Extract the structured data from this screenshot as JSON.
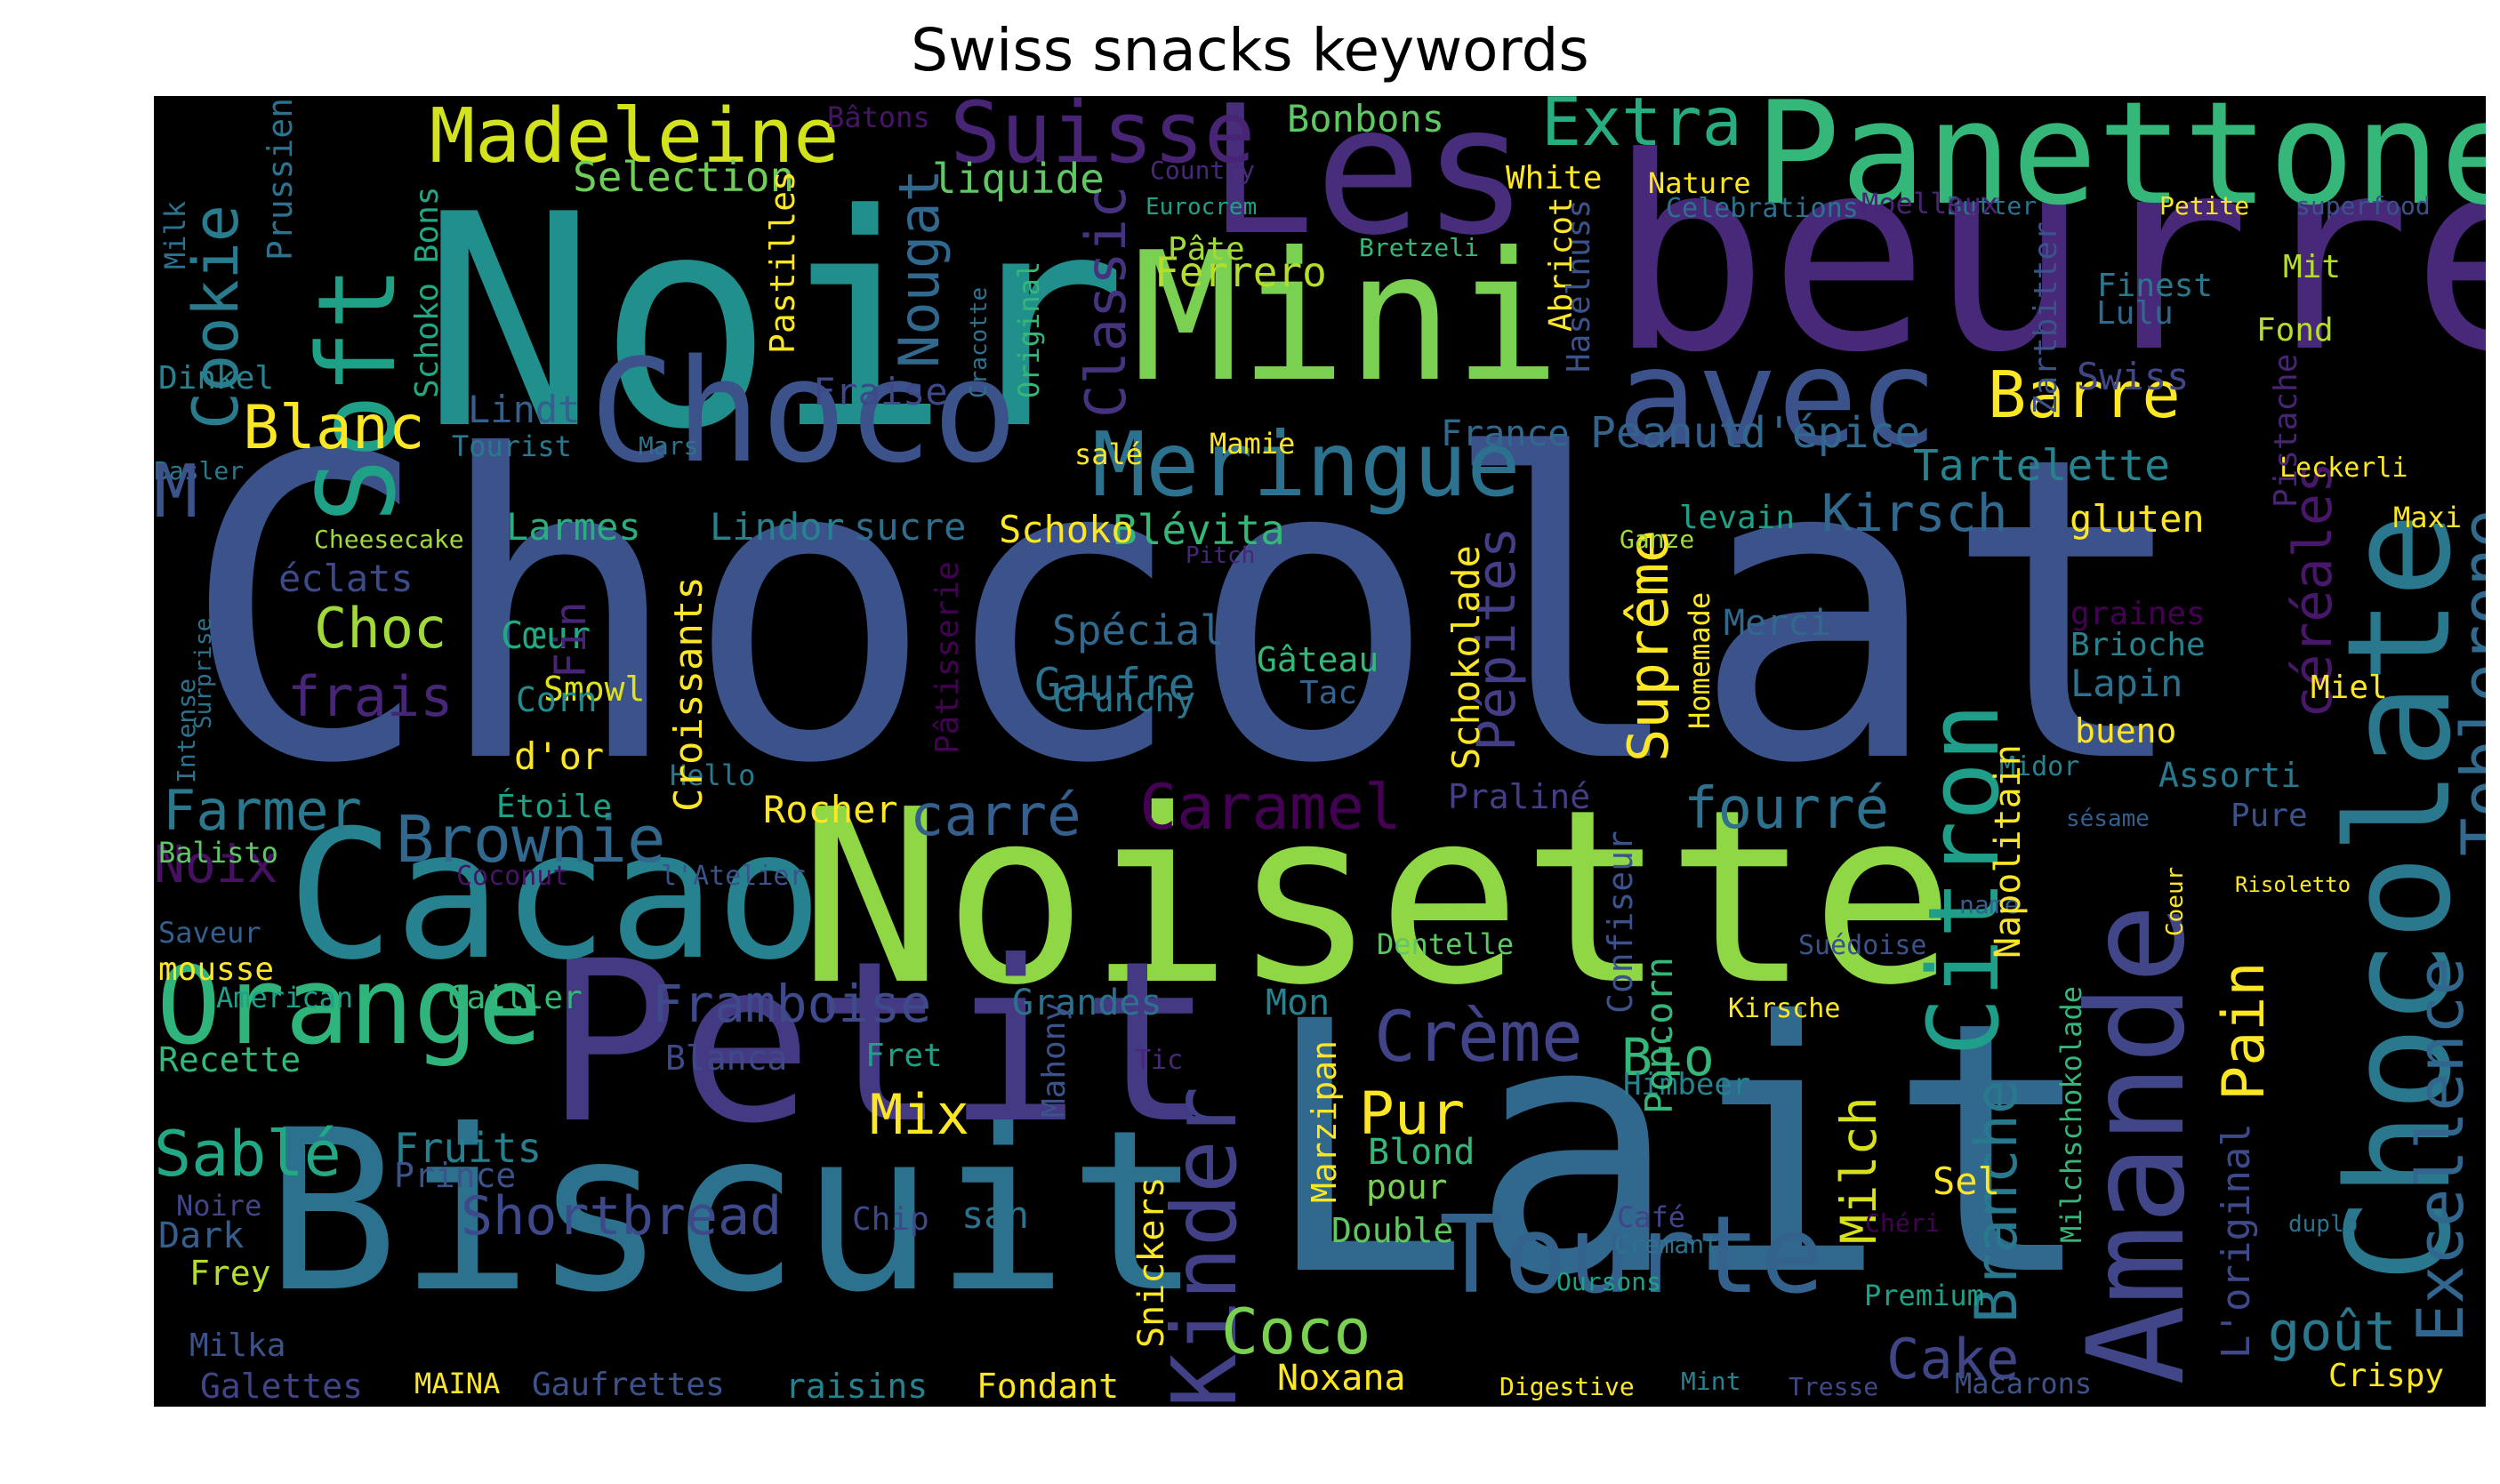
{
  "title": "Swiss snacks keywords",
  "words": [
    {
      "text": "Chocolat",
      "color": "#3b528b"
    },
    {
      "text": "Noir",
      "color": "#21908d"
    },
    {
      "text": "beurre",
      "color": "#482878"
    },
    {
      "text": "Panettone",
      "color": "#35b779"
    },
    {
      "text": "Lait",
      "color": "#31688e"
    },
    {
      "text": "Noisette",
      "color": "#8fd744"
    },
    {
      "text": "Biscuit",
      "color": "#2c728e"
    },
    {
      "text": "Petit",
      "color": "#443983"
    },
    {
      "text": "Cacao",
      "color": "#26828e"
    },
    {
      "text": "Mini",
      "color": "#7ad151"
    },
    {
      "text": "Choco",
      "color": "#3b528b"
    },
    {
      "text": "Les",
      "color": "#472d7b"
    },
    {
      "text": "avec",
      "color": "#3b528b"
    },
    {
      "text": "Amande",
      "color": "#404688"
    },
    {
      "text": "Chocolate",
      "color": "#2a788e"
    },
    {
      "text": "Orange",
      "color": "#2fb47c"
    },
    {
      "text": "Tourte",
      "color": "#33638d"
    },
    {
      "text": "Soft",
      "color": "#1fa187"
    },
    {
      "text": "Suisse",
      "color": "#482475"
    },
    {
      "text": "Meringue",
      "color": "#2c728e"
    },
    {
      "text": "Citron",
      "color": "#1f9e89"
    },
    {
      "text": "Madeleine",
      "color": "#d2e21b"
    },
    {
      "text": "Kinder",
      "color": "#424086"
    },
    {
      "text": "Extra",
      "color": "#27ad81"
    },
    {
      "text": "Cookie",
      "color": "#287c8e"
    },
    {
      "text": "Toblerone",
      "color": "#306a8e"
    },
    {
      "text": "Excellence",
      "color": "#31668e"
    },
    {
      "text": "Barre",
      "color": "#fde725"
    },
    {
      "text": "Blanc",
      "color": "#fde725"
    },
    {
      "text": "Crème",
      "color": "#414487"
    },
    {
      "text": "Brownie",
      "color": "#31688e"
    },
    {
      "text": "Caramel",
      "color": "#440154"
    },
    {
      "text": "carré",
      "color": "#355f8d"
    },
    {
      "text": "fourré",
      "color": "#2d718e"
    },
    {
      "text": "Framboise",
      "color": "#3e4a89"
    },
    {
      "text": "Sablé",
      "color": "#22a884"
    },
    {
      "text": "Shortbread",
      "color": "#3e4989"
    },
    {
      "text": "Pain",
      "color": "#fde725"
    },
    {
      "text": "Branche",
      "color": "#29798e"
    },
    {
      "text": "goût",
      "color": "#2a788e"
    },
    {
      "text": "Coco",
      "color": "#7ad151"
    },
    {
      "text": "Cake",
      "color": "#404588"
    },
    {
      "text": "Pur",
      "color": "#fde725"
    },
    {
      "text": "Bio",
      "color": "#35b779"
    },
    {
      "text": "Kirsch",
      "color": "#31688e"
    },
    {
      "text": "Tartelette",
      "color": "#26828e"
    },
    {
      "text": "Peanut",
      "color": "#33638d"
    },
    {
      "text": "d'épice",
      "color": "#31688e"
    },
    {
      "text": "Farmer",
      "color": "#2a788e"
    },
    {
      "text": "Mix",
      "color": "#fde725"
    },
    {
      "text": "Nougat",
      "color": "#31688e"
    },
    {
      "text": "Classic",
      "color": "#46327e"
    },
    {
      "text": "Choc",
      "color": "#a0da39"
    },
    {
      "text": "frais",
      "color": "#482677"
    },
    {
      "text": "Gaufre",
      "color": "#2c728e"
    },
    {
      "text": "Suprême",
      "color": "#fde725"
    },
    {
      "text": "Pépites",
      "color": "#433e85"
    },
    {
      "text": "céréales",
      "color": "#481769"
    },
    {
      "text": "Milch",
      "color": "#d8e219"
    },
    {
      "text": "Noix",
      "color": "#471063"
    },
    {
      "text": "Fruits",
      "color": "#277f8e"
    },
    {
      "text": "Spécial",
      "color": "#31688e"
    },
    {
      "text": "Blévita",
      "color": "#35b779"
    },
    {
      "text": "Ferrero",
      "color": "#b5de2b"
    },
    {
      "text": "Bonbons",
      "color": "#5ec962"
    },
    {
      "text": "Selection",
      "color": "#6ece58"
    },
    {
      "text": "liquide",
      "color": "#5ec962"
    },
    {
      "text": "Fraise",
      "color": "#3e4989"
    },
    {
      "text": "Lindt",
      "color": "#355f8d"
    },
    {
      "text": "Larmes",
      "color": "#29af7f"
    },
    {
      "text": "Lindor",
      "color": "#26828e"
    },
    {
      "text": "sucre",
      "color": "#2d708e"
    },
    {
      "text": "Schoko",
      "color": "#fde725"
    },
    {
      "text": "éclats",
      "color": "#3e4989"
    },
    {
      "text": "Cœur",
      "color": "#22a884"
    },
    {
      "text": "Smowl",
      "color": "#dde318"
    },
    {
      "text": "Crunchy",
      "color": "#2a788e"
    },
    {
      "text": "Gâteau",
      "color": "#35b779"
    },
    {
      "text": "Tac",
      "color": "#33638d"
    },
    {
      "text": "Corn",
      "color": "#238a8d"
    },
    {
      "text": "d'or",
      "color": "#fde725"
    },
    {
      "text": "Étoile",
      "color": "#1fa187"
    },
    {
      "text": "Rocher",
      "color": "#fde725"
    },
    {
      "text": "Hello",
      "color": "#2a788e"
    },
    {
      "text": "Praliné",
      "color": "#433e85"
    },
    {
      "text": "Assorti",
      "color": "#2a788e"
    },
    {
      "text": "Pure",
      "color": "#3b528b"
    },
    {
      "text": "Lapin",
      "color": "#2c728e"
    },
    {
      "text": "Miel",
      "color": "#fde725"
    },
    {
      "text": "bueno",
      "color": "#fde725"
    },
    {
      "text": "Brioche",
      "color": "#26828e"
    },
    {
      "text": "graines",
      "color": "#440154"
    },
    {
      "text": "Merci",
      "color": "#31688e"
    },
    {
      "text": "Maxi",
      "color": "#fde725"
    },
    {
      "text": "gluten",
      "color": "#fde725"
    },
    {
      "text": "levain",
      "color": "#1fa187"
    },
    {
      "text": "Swiss",
      "color": "#404688"
    },
    {
      "text": "Fond",
      "color": "#b5de2b"
    },
    {
      "text": "Mit",
      "color": "#b5de2b"
    },
    {
      "text": "Lulu",
      "color": "#31688e"
    },
    {
      "text": "Finest",
      "color": "#2a788e"
    },
    {
      "text": "Nature",
      "color": "#fde725"
    },
    {
      "text": "White",
      "color": "#fde725"
    },
    {
      "text": "France",
      "color": "#31688e"
    },
    {
      "text": "Mamie",
      "color": "#fde725"
    },
    {
      "text": "salé",
      "color": "#fde725"
    },
    {
      "text": "Pâte",
      "color": "#a0da39"
    },
    {
      "text": "Tourist",
      "color": "#2a788e"
    },
    {
      "text": "Dinkel",
      "color": "#26828e"
    },
    {
      "text": "Balisto",
      "color": "#5ec962"
    },
    {
      "text": "Saveur",
      "color": "#355f8d"
    },
    {
      "text": "mousse",
      "color": "#fde725"
    },
    {
      "text": "American",
      "color": "#1fa187"
    },
    {
      "text": "Recette",
      "color": "#35b779"
    },
    {
      "text": "Noire",
      "color": "#404688"
    },
    {
      "text": "Dark",
      "color": "#355f8d"
    },
    {
      "text": "Frey",
      "color": "#b5de2b"
    },
    {
      "text": "Milka",
      "color": "#3b528b"
    },
    {
      "text": "Galettes",
      "color": "#414487"
    },
    {
      "text": "MAINA",
      "color": "#fde725"
    },
    {
      "text": "Gaufrettes",
      "color": "#3b528b"
    },
    {
      "text": "raisins",
      "color": "#26828e"
    },
    {
      "text": "Fondant",
      "color": "#fde725"
    },
    {
      "text": "Noxana",
      "color": "#fde725"
    },
    {
      "text": "Digestive",
      "color": "#fde725"
    },
    {
      "text": "Mint",
      "color": "#26828e"
    },
    {
      "text": "Tresse",
      "color": "#3e4989"
    },
    {
      "text": "Macarons",
      "color": "#3b528b"
    },
    {
      "text": "Crispy",
      "color": "#fde725"
    },
    {
      "text": "Cailler",
      "color": "#35b779"
    },
    {
      "text": "Blanca",
      "color": "#3e4989"
    },
    {
      "text": "Fret",
      "color": "#1fa187"
    },
    {
      "text": "Grandes",
      "color": "#2c728e"
    },
    {
      "text": "Mon",
      "color": "#26828e"
    },
    {
      "text": "Prince",
      "color": "#3b528b"
    },
    {
      "text": "Chip",
      "color": "#3e4989"
    },
    {
      "text": "san",
      "color": "#2c728e"
    },
    {
      "text": "Blond",
      "color": "#35b779"
    },
    {
      "text": "pour",
      "color": "#7ad151"
    },
    {
      "text": "Double",
      "color": "#5ec962"
    },
    {
      "text": "Himbeer",
      "color": "#26828e"
    },
    {
      "text": "Sel",
      "color": "#fde725"
    },
    {
      "text": "Café",
      "color": "#414487"
    },
    {
      "text": "Crémant",
      "color": "#2c728e"
    },
    {
      "text": "Oursons",
      "color": "#1fa187"
    },
    {
      "text": "Premium",
      "color": "#1fa187"
    },
    {
      "text": "Dentelle",
      "color": "#5ec962"
    },
    {
      "text": "Suédoise",
      "color": "#3b528b"
    },
    {
      "text": "Kirsche",
      "color": "#fde725"
    },
    {
      "text": "Midor",
      "color": "#26828e"
    },
    {
      "text": "sésame",
      "color": "#355f8d"
    },
    {
      "text": "Risoletto",
      "color": "#fde725"
    },
    {
      "text": "Coeur",
      "color": "#fde725"
    },
    {
      "text": "name",
      "color": "#355f8d"
    },
    {
      "text": "Chéri",
      "color": "#440154"
    },
    {
      "text": "duplo",
      "color": "#2c728e"
    },
    {
      "text": "Tic",
      "color": "#482878"
    },
    {
      "text": "Coconut",
      "color": "#481467"
    },
    {
      "text": "l'Atelier",
      "color": "#3b528b"
    },
    {
      "text": "Cheesecake",
      "color": "#a0da39"
    },
    {
      "text": "Basler",
      "color": "#2a788e"
    },
    {
      "text": "Mars",
      "color": "#2c728e"
    },
    {
      "text": "Pitch",
      "color": "#482677"
    },
    {
      "text": "Ganze",
      "color": "#a0da39"
    },
    {
      "text": "Butter",
      "color": "#2c728e"
    },
    {
      "text": "Petite",
      "color": "#fde725"
    },
    {
      "text": "superfood",
      "color": "#3b528b"
    },
    {
      "text": "Celebrations",
      "color": "#2c728e"
    },
    {
      "text": "Moelleux",
      "color": "#482475"
    },
    {
      "text": "Bretzeli",
      "color": "#35b779"
    },
    {
      "text": "Eurocrem",
      "color": "#1fa187"
    },
    {
      "text": "Country",
      "color": "#482878"
    },
    {
      "text": "Bâtons",
      "color": "#481467"
    },
    {
      "text": "Leckerli",
      "color": "#fde725"
    },
    {
      "text": "M",
      "color": "#3b528b"
    },
    {
      "text": "Milk",
      "color": "#2c728e"
    },
    {
      "text": "Prussiens",
      "color": "#2c728e"
    },
    {
      "text": "Schoko Bons",
      "color": "#22a884"
    },
    {
      "text": "Pastilles",
      "color": "#fde725"
    },
    {
      "text": "Cracotte",
      "color": "#2c728e"
    },
    {
      "text": "Original",
      "color": "#35b779"
    },
    {
      "text": "Fin",
      "color": "#482475"
    },
    {
      "text": "Croissants",
      "color": "#fde725"
    },
    {
      "text": "Pâtisserie",
      "color": "#440154"
    },
    {
      "text": "Intense",
      "color": "#2c728e"
    },
    {
      "text": "Surprise",
      "color": "#2c728e"
    },
    {
      "text": "Schokolade",
      "color": "#fde725"
    },
    {
      "text": "Homemade",
      "color": "#fde725"
    },
    {
      "text": "Confiseur",
      "color": "#3b528b"
    },
    {
      "text": "Popcorn",
      "color": "#35b779"
    },
    {
      "text": "Marzipan",
      "color": "#fde725"
    },
    {
      "text": "Mahony",
      "color": "#3b528b"
    },
    {
      "text": "Snickers",
      "color": "#fde725"
    },
    {
      "text": "Napolitain",
      "color": "#fde725"
    },
    {
      "text": "Milchschokolade",
      "color": "#35b779"
    },
    {
      "text": "L'original",
      "color": "#3e4989"
    },
    {
      "text": "Pistache",
      "color": "#482475"
    },
    {
      "text": "Zartbitter",
      "color": "#3b528b"
    },
    {
      "text": "Abricot",
      "color": "#fde725"
    },
    {
      "text": "Haselnuss",
      "color": "#3b528b"
    }
  ]
}
